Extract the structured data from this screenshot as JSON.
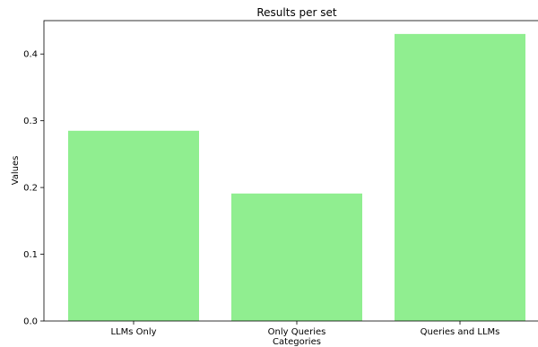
{
  "chart_data": {
    "type": "bar",
    "title": "Results per set",
    "xlabel": "Categories",
    "ylabel": "Values",
    "categories": [
      "LLMs Only",
      "Only Queries",
      "Queries and LLMs"
    ],
    "values": [
      0.285,
      0.191,
      0.43
    ],
    "ylim": [
      0,
      0.45
    ],
    "yticks": [
      "0.0",
      "0.1",
      "0.2",
      "0.3",
      "0.4"
    ],
    "bar_color": "#90ee90",
    "grid": false,
    "legend": "none"
  }
}
